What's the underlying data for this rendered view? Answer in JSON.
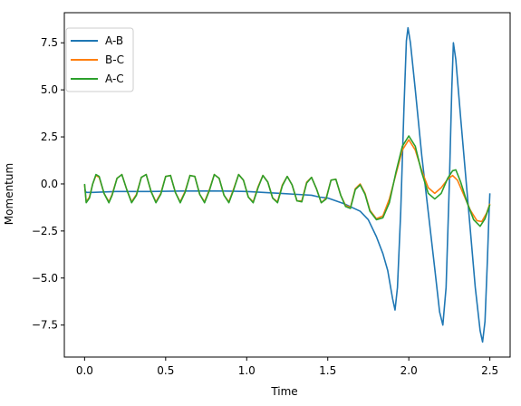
{
  "chart_data": {
    "type": "line",
    "xlabel": "Time",
    "ylabel": "Momentum",
    "xlim": [
      -0.125,
      2.625
    ],
    "ylim": [
      -9.2,
      9.1
    ],
    "x_ticks": [
      0.0,
      0.5,
      1.0,
      1.5,
      2.0,
      2.5
    ],
    "x_tick_labels": [
      "0.0",
      "0.5",
      "1.0",
      "1.5",
      "2.0",
      "2.5"
    ],
    "y_ticks": [
      -7.5,
      -5.0,
      -2.5,
      0.0,
      2.5,
      5.0,
      7.5
    ],
    "y_tick_labels": [
      "−7.5",
      "−5.0",
      "−2.5",
      "0.0",
      "2.5",
      "5.0",
      "7.5"
    ],
    "grid": false,
    "legend_position": "top-left",
    "series": [
      {
        "name": "A-B",
        "color": "#1f77b4",
        "points": [
          [
            0.0,
            -0.3
          ],
          [
            0.01,
            -0.45
          ],
          [
            0.05,
            -0.45
          ],
          [
            0.2,
            -0.4
          ],
          [
            0.4,
            -0.4
          ],
          [
            0.6,
            -0.38
          ],
          [
            0.8,
            -0.37
          ],
          [
            1.0,
            -0.4
          ],
          [
            1.1,
            -0.45
          ],
          [
            1.2,
            -0.5
          ],
          [
            1.3,
            -0.55
          ],
          [
            1.4,
            -0.6
          ],
          [
            1.45,
            -0.7
          ],
          [
            1.5,
            -0.75
          ],
          [
            1.55,
            -0.9
          ],
          [
            1.6,
            -1.05
          ],
          [
            1.65,
            -1.25
          ],
          [
            1.7,
            -1.45
          ],
          [
            1.75,
            -1.9
          ],
          [
            1.8,
            -2.8
          ],
          [
            1.84,
            -3.7
          ],
          [
            1.87,
            -4.6
          ],
          [
            1.9,
            -6.1
          ],
          [
            1.915,
            -6.7
          ],
          [
            1.93,
            -5.5
          ],
          [
            1.95,
            -1.5
          ],
          [
            1.97,
            4.0
          ],
          [
            1.985,
            7.6
          ],
          [
            1.995,
            8.3
          ],
          [
            2.01,
            7.5
          ],
          [
            2.04,
            5.0
          ],
          [
            2.08,
            1.5
          ],
          [
            2.12,
            -1.5
          ],
          [
            2.16,
            -4.5
          ],
          [
            2.19,
            -6.8
          ],
          [
            2.21,
            -7.5
          ],
          [
            2.23,
            -5.5
          ],
          [
            2.25,
            0.0
          ],
          [
            2.265,
            5.0
          ],
          [
            2.275,
            7.5
          ],
          [
            2.29,
            6.6
          ],
          [
            2.32,
            3.5
          ],
          [
            2.35,
            0.5
          ],
          [
            2.38,
            -2.5
          ],
          [
            2.41,
            -5.5
          ],
          [
            2.44,
            -7.8
          ],
          [
            2.455,
            -8.4
          ],
          [
            2.47,
            -7.3
          ],
          [
            2.485,
            -4.0
          ],
          [
            2.495,
            -1.5
          ],
          [
            2.5,
            -0.5
          ]
        ]
      },
      {
        "name": "B-C",
        "color": "#ff7f0e",
        "points": [
          [
            0.0,
            -0.05
          ],
          [
            0.01,
            -0.95
          ],
          [
            0.03,
            -0.7
          ],
          [
            0.05,
            0.0
          ],
          [
            0.07,
            0.45
          ],
          [
            0.09,
            0.35
          ],
          [
            0.12,
            -0.5
          ],
          [
            0.15,
            -0.95
          ],
          [
            0.17,
            -0.55
          ],
          [
            0.2,
            0.3
          ],
          [
            0.23,
            0.5
          ],
          [
            0.26,
            -0.3
          ],
          [
            0.29,
            -0.95
          ],
          [
            0.32,
            -0.55
          ],
          [
            0.35,
            0.35
          ],
          [
            0.38,
            0.5
          ],
          [
            0.41,
            -0.4
          ],
          [
            0.44,
            -0.95
          ],
          [
            0.47,
            -0.5
          ],
          [
            0.5,
            0.4
          ],
          [
            0.53,
            0.45
          ],
          [
            0.56,
            -0.45
          ],
          [
            0.59,
            -0.95
          ],
          [
            0.62,
            -0.4
          ],
          [
            0.65,
            0.45
          ],
          [
            0.68,
            0.4
          ],
          [
            0.71,
            -0.55
          ],
          [
            0.74,
            -0.95
          ],
          [
            0.77,
            -0.3
          ],
          [
            0.8,
            0.5
          ],
          [
            0.83,
            0.3
          ],
          [
            0.86,
            -0.6
          ],
          [
            0.89,
            -0.95
          ],
          [
            0.92,
            -0.25
          ],
          [
            0.95,
            0.5
          ],
          [
            0.98,
            0.2
          ],
          [
            1.01,
            -0.7
          ],
          [
            1.04,
            -0.95
          ],
          [
            1.07,
            -0.15
          ],
          [
            1.1,
            0.45
          ],
          [
            1.13,
            0.1
          ],
          [
            1.16,
            -0.75
          ],
          [
            1.19,
            -0.95
          ],
          [
            1.22,
            -0.05
          ],
          [
            1.25,
            0.4
          ],
          [
            1.28,
            -0.05
          ],
          [
            1.31,
            -0.9
          ],
          [
            1.34,
            -0.9
          ],
          [
            1.37,
            0.1
          ],
          [
            1.4,
            0.35
          ],
          [
            1.43,
            -0.25
          ],
          [
            1.46,
            -1.0
          ],
          [
            1.49,
            -0.75
          ],
          [
            1.52,
            0.2
          ],
          [
            1.55,
            0.25
          ],
          [
            1.58,
            -0.6
          ],
          [
            1.61,
            -1.15
          ],
          [
            1.64,
            -1.25
          ],
          [
            1.67,
            -0.25
          ],
          [
            1.7,
            0.0
          ],
          [
            1.73,
            -0.5
          ],
          [
            1.76,
            -1.4
          ],
          [
            1.8,
            -1.85
          ],
          [
            1.84,
            -1.7
          ],
          [
            1.88,
            -0.8
          ],
          [
            1.92,
            0.5
          ],
          [
            1.96,
            1.8
          ],
          [
            2.0,
            2.35
          ],
          [
            2.04,
            1.8
          ],
          [
            2.08,
            0.7
          ],
          [
            2.12,
            -0.2
          ],
          [
            2.16,
            -0.5
          ],
          [
            2.2,
            -0.2
          ],
          [
            2.24,
            0.25
          ],
          [
            2.27,
            0.45
          ],
          [
            2.3,
            0.2
          ],
          [
            2.34,
            -0.6
          ],
          [
            2.38,
            -1.4
          ],
          [
            2.42,
            -1.95
          ],
          [
            2.45,
            -2.0
          ],
          [
            2.48,
            -1.55
          ],
          [
            2.5,
            -1.05
          ]
        ]
      },
      {
        "name": "A-C",
        "color": "#2ca02c",
        "points": [
          [
            0.0,
            0.0
          ],
          [
            0.01,
            -1.0
          ],
          [
            0.03,
            -0.75
          ],
          [
            0.05,
            0.0
          ],
          [
            0.07,
            0.5
          ],
          [
            0.09,
            0.4
          ],
          [
            0.12,
            -0.5
          ],
          [
            0.15,
            -1.0
          ],
          [
            0.17,
            -0.6
          ],
          [
            0.2,
            0.3
          ],
          [
            0.23,
            0.5
          ],
          [
            0.26,
            -0.3
          ],
          [
            0.29,
            -1.0
          ],
          [
            0.32,
            -0.6
          ],
          [
            0.35,
            0.35
          ],
          [
            0.38,
            0.5
          ],
          [
            0.41,
            -0.4
          ],
          [
            0.44,
            -1.0
          ],
          [
            0.47,
            -0.55
          ],
          [
            0.5,
            0.4
          ],
          [
            0.53,
            0.45
          ],
          [
            0.56,
            -0.45
          ],
          [
            0.59,
            -1.0
          ],
          [
            0.62,
            -0.45
          ],
          [
            0.65,
            0.45
          ],
          [
            0.68,
            0.4
          ],
          [
            0.71,
            -0.55
          ],
          [
            0.74,
            -1.0
          ],
          [
            0.77,
            -0.35
          ],
          [
            0.8,
            0.5
          ],
          [
            0.83,
            0.3
          ],
          [
            0.86,
            -0.6
          ],
          [
            0.89,
            -1.0
          ],
          [
            0.92,
            -0.3
          ],
          [
            0.95,
            0.5
          ],
          [
            0.98,
            0.2
          ],
          [
            1.01,
            -0.7
          ],
          [
            1.04,
            -1.0
          ],
          [
            1.07,
            -0.2
          ],
          [
            1.1,
            0.45
          ],
          [
            1.13,
            0.1
          ],
          [
            1.16,
            -0.75
          ],
          [
            1.19,
            -1.0
          ],
          [
            1.22,
            -0.1
          ],
          [
            1.25,
            0.4
          ],
          [
            1.28,
            -0.05
          ],
          [
            1.31,
            -0.9
          ],
          [
            1.34,
            -0.95
          ],
          [
            1.37,
            0.05
          ],
          [
            1.4,
            0.35
          ],
          [
            1.43,
            -0.25
          ],
          [
            1.46,
            -1.0
          ],
          [
            1.49,
            -0.8
          ],
          [
            1.52,
            0.2
          ],
          [
            1.55,
            0.25
          ],
          [
            1.58,
            -0.6
          ],
          [
            1.61,
            -1.2
          ],
          [
            1.64,
            -1.3
          ],
          [
            1.67,
            -0.3
          ],
          [
            1.7,
            -0.05
          ],
          [
            1.73,
            -0.55
          ],
          [
            1.76,
            -1.45
          ],
          [
            1.8,
            -1.9
          ],
          [
            1.84,
            -1.8
          ],
          [
            1.88,
            -1.0
          ],
          [
            1.92,
            0.6
          ],
          [
            1.96,
            2.0
          ],
          [
            2.0,
            2.55
          ],
          [
            2.04,
            2.0
          ],
          [
            2.08,
            0.6
          ],
          [
            2.12,
            -0.5
          ],
          [
            2.16,
            -0.8
          ],
          [
            2.2,
            -0.5
          ],
          [
            2.24,
            0.3
          ],
          [
            2.27,
            0.7
          ],
          [
            2.29,
            0.75
          ],
          [
            2.32,
            0.1
          ],
          [
            2.36,
            -1.0
          ],
          [
            2.4,
            -1.9
          ],
          [
            2.44,
            -2.25
          ],
          [
            2.47,
            -1.85
          ],
          [
            2.5,
            -1.1
          ]
        ]
      }
    ]
  }
}
